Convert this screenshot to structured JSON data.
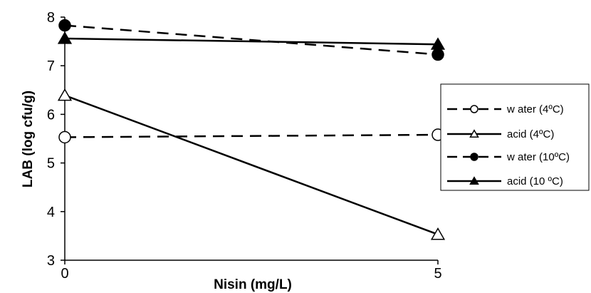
{
  "chart_data": {
    "type": "line",
    "title": "",
    "xlabel": "Nisin (mg/L)",
    "ylabel": "LAB (log cfu/g)",
    "x": [
      0,
      5
    ],
    "x_ticks": [
      "0",
      "5"
    ],
    "ylim": [
      3,
      8
    ],
    "y_ticks": [
      "3",
      "4",
      "5",
      "6",
      "7",
      "8"
    ],
    "grid": false,
    "legend_position": "right",
    "series": [
      {
        "name": "w ater (4ºC)",
        "values": [
          5.53,
          5.58
        ],
        "dash": "dashed",
        "marker": "circle-open",
        "color": "#000000"
      },
      {
        "name": "acid (4ºC)",
        "values": [
          6.39,
          3.53
        ],
        "dash": "solid",
        "marker": "triangle-open",
        "color": "#000000"
      },
      {
        "name": "w ater (10ºC)",
        "values": [
          7.83,
          7.23
        ],
        "dash": "dashed",
        "marker": "circle-filled",
        "color": "#000000"
      },
      {
        "name": "acid (10 ºC)",
        "values": [
          7.56,
          7.44
        ],
        "dash": "solid",
        "marker": "triangle-filled",
        "color": "#000000"
      }
    ]
  }
}
